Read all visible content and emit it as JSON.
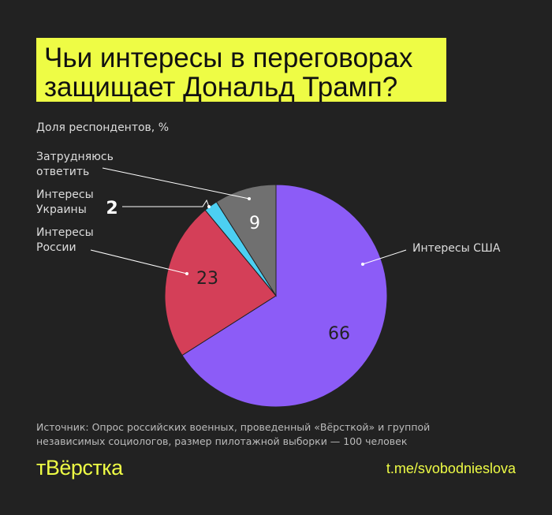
{
  "title": {
    "line1": "Чьи интересы в переговорах",
    "line2": "защищает Дональд Трамп?"
  },
  "subtitle": "Доля респондентов, %",
  "chart_data": {
    "type": "pie",
    "title": "Чьи интересы в переговорах защищает Дональд Трамп?",
    "unit": "Доля респондентов, %",
    "start": "top",
    "direction": "clockwise",
    "slices": [
      {
        "label": "Интересы США",
        "value": 66,
        "color": "#8c5cf7"
      },
      {
        "label": "Интересы России",
        "value": 23,
        "color": "#d43f58"
      },
      {
        "label": "Интересы Украины",
        "value": 2,
        "color": "#4ccff2"
      },
      {
        "label": "Затрудняюсь ответить",
        "value": 9,
        "color": "#707070"
      }
    ],
    "label_lines": [
      [
        "Интересы США"
      ],
      [
        "Интересы",
        "России"
      ],
      [
        "Интересы",
        "Украины"
      ],
      [
        "Затрудняюсь",
        "ответить"
      ]
    ]
  },
  "source": "Источник: Опрос российских военных, проведенный «Вёрсткой» и группой независимых социологов, размер пилотажной выборки — 100 человек",
  "logo": "тВёрстка",
  "link": "t.me/svobodnieslova"
}
